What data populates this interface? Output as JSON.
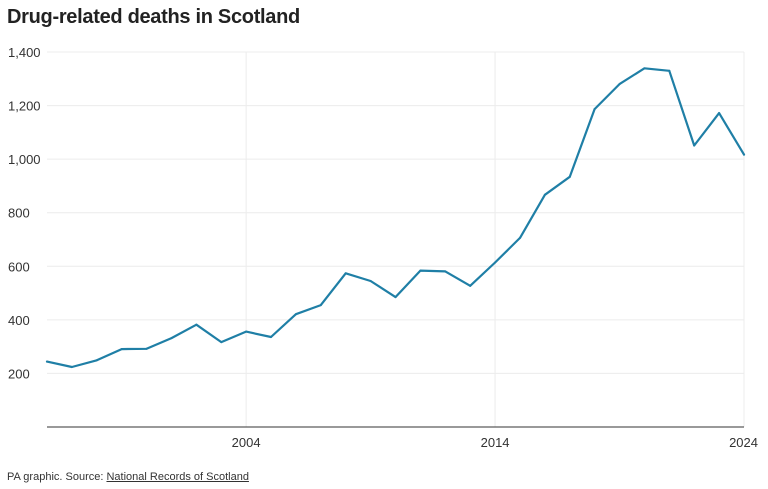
{
  "title": "Drug-related deaths in Scotland",
  "source": {
    "prefix": "PA graphic. Source: ",
    "link_text": "National Records of Scotland"
  },
  "colors": {
    "line": "#1f7fa6",
    "grid": "#ececec",
    "axis": "#333333",
    "text": "#333333"
  },
  "chart_data": {
    "type": "line",
    "title": "Drug-related deaths in Scotland",
    "xlabel": "",
    "ylabel": "",
    "xlim": [
      1996,
      2024
    ],
    "ylim": [
      0,
      1400
    ],
    "yticks": [
      200,
      400,
      600,
      800,
      1000,
      1200,
      1400
    ],
    "ytick_labels": [
      "200",
      "400",
      "600",
      "800",
      "1,000",
      "1,200",
      "1,400"
    ],
    "xticks": [
      2004,
      2014,
      2024
    ],
    "xtick_labels": [
      "2004",
      "2014",
      "2024"
    ],
    "grid": true,
    "series": [
      {
        "x": [
          1996,
          1997,
          1998,
          1999,
          2000,
          2001,
          2002,
          2003,
          2004,
          2005,
          2006,
          2007,
          2008,
          2009,
          2010,
          2011,
          2012,
          2013,
          2014,
          2015,
          2016,
          2017,
          2018,
          2019,
          2020,
          2021,
          2022,
          2023,
          2024
        ],
        "values": [
          244,
          224,
          249,
          291,
          292,
          332,
          382,
          317,
          356,
          336,
          421,
          455,
          574,
          545,
          485,
          584,
          581,
          527,
          614,
          706,
          867,
          934,
          1187,
          1280,
          1339,
          1330,
          1051,
          1172,
          1017
        ]
      }
    ]
  }
}
